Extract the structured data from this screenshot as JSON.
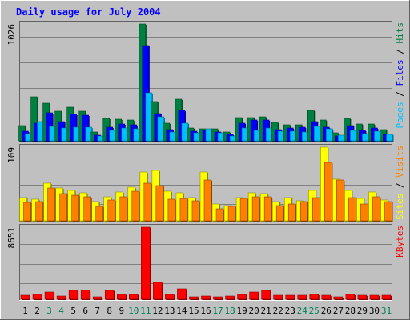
{
  "chart_data": [
    {
      "type": "bar",
      "title": "Daily usage for July 2004",
      "categories": [
        "1",
        "2",
        "3",
        "4",
        "5",
        "6",
        "7",
        "8",
        "9",
        "10",
        "11",
        "12",
        "13",
        "14",
        "15",
        "16",
        "17",
        "18",
        "19",
        "20",
        "21",
        "22",
        "23",
        "24",
        "25",
        "26",
        "27",
        "28",
        "29",
        "30",
        "31"
      ],
      "weekend_days": [
        "3",
        "4",
        "10",
        "11",
        "17",
        "18",
        "24",
        "25",
        "31"
      ],
      "panel": "hits-files-pages",
      "ymax_label": "1026",
      "ylim": [
        0,
        1026
      ],
      "right_label": [
        "Pages",
        " / ",
        "Files",
        " / ",
        "Hits"
      ],
      "series": [
        {
          "name": "Hits",
          "color": "#008040",
          "values": [
            134,
            385,
            329,
            262,
            295,
            262,
            74,
            200,
            190,
            184,
            1026,
            347,
            153,
            363,
            114,
            108,
            105,
            78,
            204,
            206,
            210,
            162,
            142,
            144,
            270,
            184,
            67,
            198,
            150,
            145,
            98
          ]
        },
        {
          "name": "Files",
          "color": "#0000ff",
          "values": [
            86,
            158,
            249,
            168,
            232,
            224,
            49,
            118,
            149,
            141,
            839,
            240,
            98,
            266,
            86,
            93,
            78,
            55,
            155,
            186,
            184,
            98,
            113,
            117,
            168,
            121,
            44,
            132,
            89,
            113,
            54
          ]
        },
        {
          "name": "Pages",
          "color": "#00c0ff",
          "values": [
            63,
            168,
            127,
            114,
            120,
            118,
            42,
            94,
            112,
            107,
            421,
            210,
            77,
            158,
            67,
            103,
            71,
            39,
            110,
            94,
            110,
            82,
            84,
            78,
            130,
            102,
            47,
            91,
            66,
            84,
            59
          ]
        }
      ]
    },
    {
      "type": "bar",
      "panel": "sites-visits",
      "ymax_label": "109",
      "ylim": [
        0,
        109
      ],
      "right_label": [
        "Sites",
        " / ",
        "Visits"
      ],
      "series": [
        {
          "name": "Sites",
          "color": "#ffff00",
          "values": [
            34,
            32,
            56,
            48,
            45,
            41,
            28,
            36,
            43,
            50,
            72,
            75,
            44,
            41,
            34,
            72,
            25,
            22,
            34,
            42,
            40,
            28,
            34,
            30,
            45,
            109,
            62,
            45,
            33,
            43,
            31
          ]
        },
        {
          "name": "Visits",
          "color": "#ff8000",
          "values": [
            27,
            28,
            48,
            40,
            38,
            35,
            21,
            31,
            36,
            44,
            56,
            52,
            32,
            33,
            30,
            61,
            18,
            21,
            33,
            35,
            36,
            23,
            25,
            28,
            34,
            86,
            60,
            34,
            25,
            36,
            28
          ]
        }
      ]
    },
    {
      "type": "bar",
      "panel": "kbytes",
      "ymax_label": "8651",
      "ylim": [
        0,
        8651
      ],
      "right_label": [
        "KBytes"
      ],
      "series": [
        {
          "name": "KBytes",
          "color": "#ff0000",
          "values": [
            480,
            580,
            850,
            390,
            1020,
            1020,
            310,
            1040,
            590,
            620,
            8651,
            2040,
            610,
            1230,
            310,
            360,
            310,
            360,
            560,
            830,
            1030,
            490,
            510,
            460,
            570,
            500,
            310,
            560,
            480,
            490,
            510
          ]
        }
      ]
    }
  ]
}
